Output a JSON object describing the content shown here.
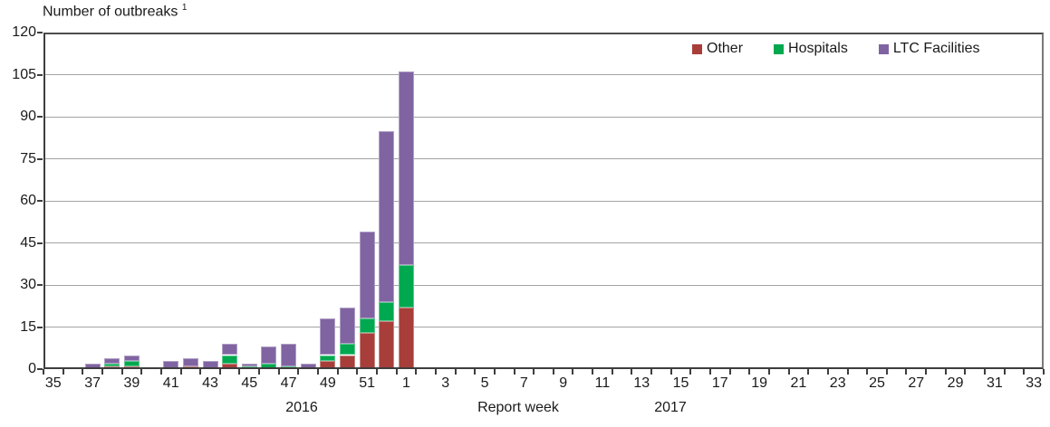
{
  "title": {
    "text": "Number of outbreaks",
    "footnote_marker": "1"
  },
  "legend": {
    "items": [
      {
        "label": "Other",
        "color": "#A73E3A"
      },
      {
        "label": "Hospitals",
        "color": "#00A84F"
      },
      {
        "label": "LTC Facilities",
        "color": "#8064A2"
      }
    ]
  },
  "axis": {
    "x_title": "Report week",
    "year_left": "2016",
    "year_right": "2017"
  },
  "colors": {
    "other": "#A73E3A",
    "hospitals": "#00A84F",
    "ltc_facilities": "#8064A2",
    "gridline": "#a3a3a3",
    "axis_line": "#3d3d3d"
  },
  "chart_data": {
    "type": "bar",
    "stacked": true,
    "title": "Number of outbreaks 1",
    "xlabel": "Report week",
    "ylabel": "Number of outbreaks",
    "ylim": [
      0,
      120
    ],
    "yticks": [
      0,
      15,
      30,
      45,
      60,
      75,
      90,
      105,
      120
    ],
    "grid": "horizontal",
    "legend_position": "top-right-inside",
    "x_year_groups": [
      {
        "year": "2016",
        "weeks_from": 35,
        "weeks_to": 52
      },
      {
        "year": "2017",
        "weeks_from": 1,
        "weeks_to": 33
      }
    ],
    "x": [
      35,
      36,
      37,
      38,
      39,
      40,
      41,
      42,
      43,
      44,
      45,
      46,
      47,
      48,
      49,
      50,
      51,
      52,
      1,
      2,
      3,
      4,
      5,
      6,
      7,
      8,
      9,
      10,
      11,
      12,
      13,
      14,
      15,
      16,
      17,
      18,
      19,
      20,
      21,
      22,
      23,
      24,
      25,
      26,
      27,
      28,
      29,
      30,
      31,
      32,
      33
    ],
    "xtick_labels": [
      35,
      37,
      39,
      41,
      43,
      45,
      47,
      49,
      51,
      1,
      3,
      5,
      7,
      9,
      11,
      13,
      15,
      17,
      19,
      21,
      23,
      25,
      27,
      29,
      31,
      33
    ],
    "series": [
      {
        "name": "Other",
        "color": "#A73E3A",
        "values": [
          0,
          0,
          0,
          1,
          1,
          0,
          0,
          1,
          0,
          2,
          0,
          0,
          0,
          0,
          3,
          5,
          13,
          17,
          22,
          0,
          0,
          0,
          0,
          0,
          0,
          0,
          0,
          0,
          0,
          0,
          0,
          0,
          0,
          0,
          0,
          0,
          0,
          0,
          0,
          0,
          0,
          0,
          0,
          0,
          0,
          0,
          0,
          0,
          0,
          0,
          0
        ]
      },
      {
        "name": "Hospitals",
        "color": "#00A84F",
        "values": [
          0,
          0,
          0,
          1,
          2,
          0,
          0,
          0,
          0,
          3,
          1,
          2,
          1,
          0,
          2,
          4,
          5,
          7,
          15,
          0,
          0,
          0,
          0,
          0,
          0,
          0,
          0,
          0,
          0,
          0,
          0,
          0,
          0,
          0,
          0,
          0,
          0,
          0,
          0,
          0,
          0,
          0,
          0,
          0,
          0,
          0,
          0,
          0,
          0,
          0,
          0
        ]
      },
      {
        "name": "LTC Facilities",
        "color": "#8064A2",
        "values": [
          0,
          0,
          2,
          2,
          2,
          0,
          3,
          3,
          3,
          4,
          1,
          6,
          8,
          2,
          13,
          13,
          31,
          61,
          69,
          0,
          0,
          0,
          0,
          0,
          0,
          0,
          0,
          0,
          0,
          0,
          0,
          0,
          0,
          0,
          0,
          0,
          0,
          0,
          0,
          0,
          0,
          0,
          0,
          0,
          0,
          0,
          0,
          0,
          0,
          0,
          0
        ]
      }
    ]
  }
}
